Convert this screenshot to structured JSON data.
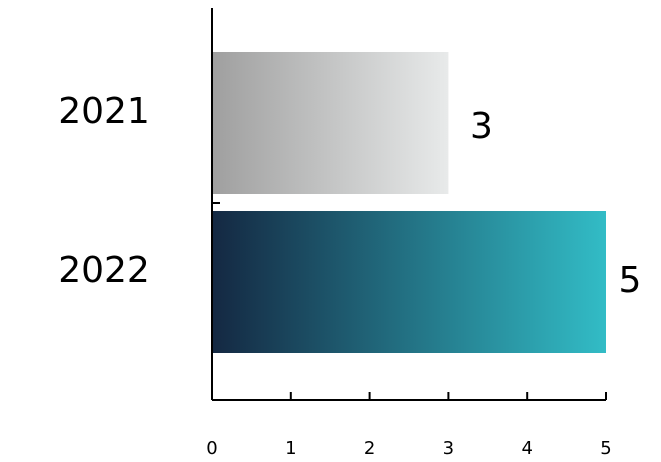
{
  "chart_data": {
    "type": "bar",
    "orientation": "horizontal",
    "categories": [
      "2021",
      "2022"
    ],
    "values": [
      3,
      5
    ],
    "title": "",
    "xlabel": "",
    "ylabel": "",
    "xlim": [
      0,
      5
    ],
    "xticks": [
      "0",
      "1",
      "2",
      "3",
      "4",
      "5"
    ],
    "grid": false,
    "legend": "none",
    "data_labels": [
      "3",
      "5"
    ],
    "colors": {
      "bar_2021_start": "#9f9f9f",
      "bar_2021_end": "#e8eaea",
      "bar_2022_start": "#142842",
      "bar_2022_end": "#32bcc6",
      "axis": "#000000",
      "text": "#000000"
    }
  }
}
